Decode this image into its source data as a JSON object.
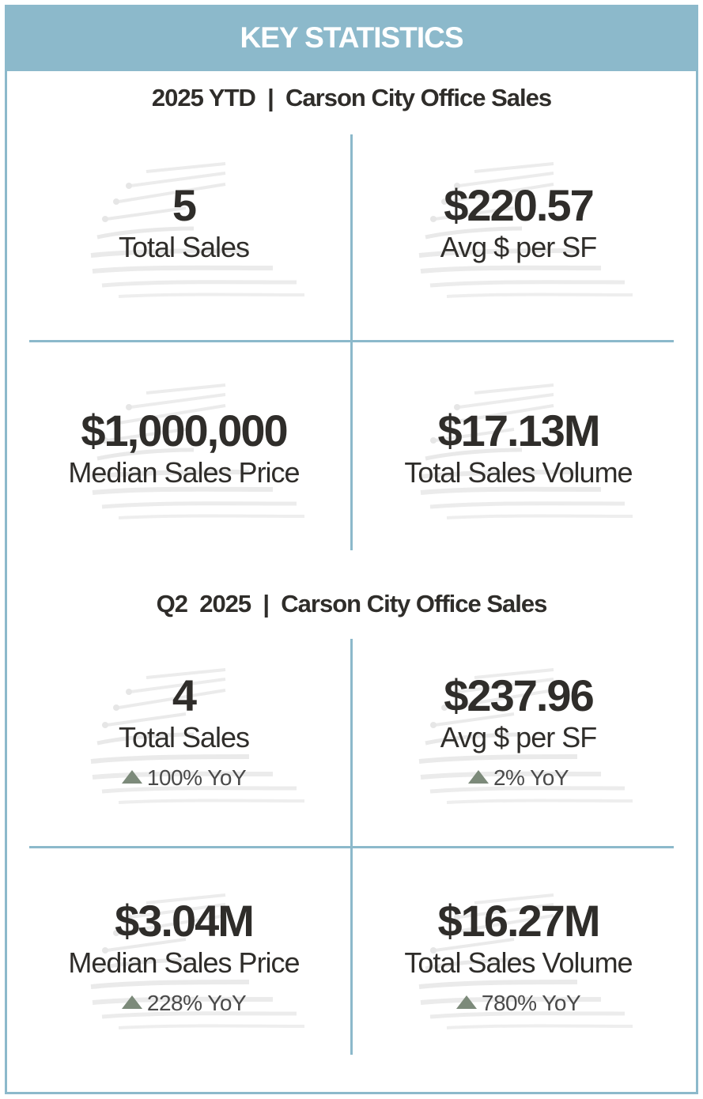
{
  "header": {
    "title": "KEY STATISTICS"
  },
  "ytd": {
    "title": "2025 YTD  |  Carson City Office Sales",
    "stats": [
      {
        "value": "5",
        "label": "Total Sales"
      },
      {
        "value": "$220.57",
        "label": "Avg $ per SF"
      },
      {
        "value": "$1,000,000",
        "label": "Median Sales Price"
      },
      {
        "value": "$17.13M",
        "label": "Total Sales Volume"
      }
    ]
  },
  "q2": {
    "title": "Q2  2025  |  Carson City Office Sales",
    "stats": [
      {
        "value": "4",
        "label": "Total Sales",
        "change": "100% YoY"
      },
      {
        "value": "$237.96",
        "label": "Avg $ per SF",
        "change": "2% YoY"
      },
      {
        "value": "$3.04M",
        "label": "Median Sales Price",
        "change": "228% YoY"
      },
      {
        "value": "$16.27M",
        "label": "Total Sales Volume",
        "change": "780% YoY"
      }
    ]
  },
  "colors": {
    "accent": "#8cb9cb",
    "text": "#2f2d2a",
    "up_arrow": "#7c8a7a"
  },
  "icons": {
    "watermark": "swoosh-logo-watermark",
    "change": "triangle-up-icon"
  }
}
